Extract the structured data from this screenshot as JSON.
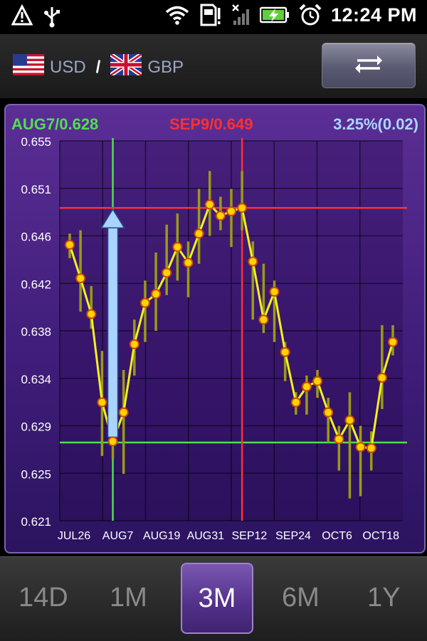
{
  "status_bar": {
    "time": "12:24 PM",
    "icons": [
      "warning-icon",
      "usb-icon",
      "wifi-icon",
      "sd-card-alert-icon",
      "no-signal-icon",
      "battery-charging-icon",
      "alarm-icon"
    ]
  },
  "header": {
    "base_currency": "USD",
    "separator": "/",
    "quote_currency": "GBP",
    "swap_icon": "swap-arrows-icon"
  },
  "chart_info": {
    "low_marker": "AUG7/0.628",
    "high_marker": "SEP9/0.649",
    "change": "3.25%(0.02)"
  },
  "colors": {
    "low": "#4fe04f",
    "high": "#ff3030",
    "change": "#a9d6ff",
    "line": "#f2f21c",
    "point": "#ffd400",
    "panel": "#4a2686"
  },
  "chart_data": {
    "type": "line",
    "title": "",
    "xlabel": "",
    "ylabel": "",
    "ylim": [
      0.621,
      0.655
    ],
    "ytick_labels": [
      "0.655",
      "0.651",
      "0.646",
      "0.642",
      "0.638",
      "0.634",
      "0.629",
      "0.625",
      "0.621"
    ],
    "xtick_labels": [
      "JUL26",
      "AUG7",
      "AUG19",
      "AUG31",
      "SEP12",
      "SEP24",
      "OCT6",
      "OCT18"
    ],
    "grid": true,
    "series": [
      {
        "values": [
          0.6457,
          0.6427,
          0.6395,
          0.6316,
          0.6281,
          0.6307,
          0.6368,
          0.6405,
          0.6413,
          0.6432,
          0.6455,
          0.6441,
          0.6467,
          0.6493,
          0.6483,
          0.6487,
          0.649,
          0.6442,
          0.639,
          0.6415,
          0.6361,
          0.6316,
          0.633,
          0.6335,
          0.6307,
          0.6283,
          0.63,
          0.6276,
          0.6275,
          0.6338,
          0.637
        ],
        "high": [
          0.6467,
          0.647,
          0.642,
          0.6362,
          0.6295,
          0.6345,
          0.639,
          0.6425,
          0.645,
          0.6475,
          0.6485,
          0.646,
          0.6507,
          0.6523,
          0.65,
          0.6507,
          0.6523,
          0.646,
          0.644,
          0.6425,
          0.637,
          0.6325,
          0.634,
          0.6345,
          0.632,
          0.6295,
          0.6325,
          0.6295,
          0.629,
          0.6385,
          0.6385
        ],
        "low": [
          0.6445,
          0.6397,
          0.6382,
          0.6268,
          0.6265,
          0.6252,
          0.634,
          0.637,
          0.638,
          0.6412,
          0.6425,
          0.641,
          0.644,
          0.6465,
          0.647,
          0.6455,
          0.647,
          0.639,
          0.6378,
          0.637,
          0.6335,
          0.6305,
          0.6305,
          0.632,
          0.628,
          0.6255,
          0.623,
          0.6232,
          0.6255,
          0.631,
          0.6358
        ]
      }
    ],
    "low_point": {
      "label": "AUG7",
      "index": 4,
      "value": 0.628
    },
    "high_point": {
      "label": "SEP9",
      "index": 16,
      "value": 0.649
    },
    "arrow": {
      "from_index": 4,
      "to_value": 0.649
    }
  },
  "tabs": [
    {
      "label": "14D",
      "active": false
    },
    {
      "label": "1M",
      "active": false
    },
    {
      "label": "3M",
      "active": true
    },
    {
      "label": "6M",
      "active": false
    },
    {
      "label": "1Y",
      "active": false
    }
  ]
}
